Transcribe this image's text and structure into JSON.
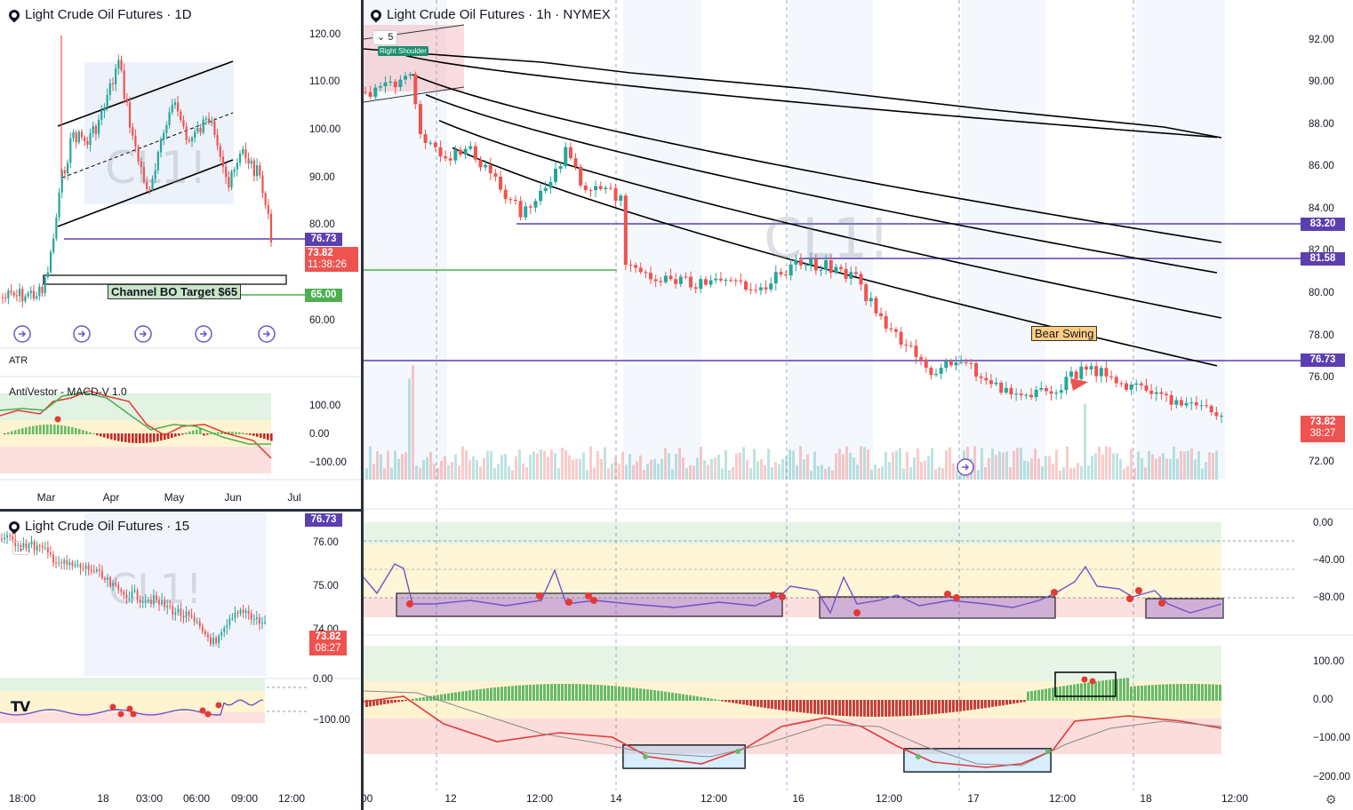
{
  "colors": {
    "up": "#26a69a",
    "down": "#ef5350",
    "line": "#000000",
    "level": "#5b3fb0",
    "green_level": "#4caf50",
    "macd": "#6c55c7",
    "signal": "#e53935"
  },
  "top_left": {
    "title": "Light Crude Oil Futures · 1D",
    "watermark": "CL1!",
    "y_ticks": [
      "120.00",
      "110.00",
      "100.00",
      "90.00",
      "80.00",
      "60.00"
    ],
    "x_ticks": [
      "Mar",
      "Apr",
      "May",
      "Jun",
      "Jul"
    ],
    "level_76": "76.73",
    "price": "73.82",
    "countdown": "11:38:26",
    "target_label": "Channel BO Target $65",
    "target_price": "65.00",
    "atr_label": "ATR",
    "macd_label": "AntiVestor - MACD-V 1.0",
    "macd_ticks": [
      "100.00",
      "0.00",
      "−100.00"
    ]
  },
  "bottom_left": {
    "title": "Light Crude Oil Futures · 15",
    "watermark": "CL1!",
    "level": "76.73",
    "y_ticks": [
      "76.00",
      "75.00",
      "74.00"
    ],
    "price": "73.82",
    "countdown": "08:27",
    "ind_ticks": [
      "0.00",
      "−100.00"
    ],
    "x_ticks": [
      "18:00",
      "18",
      "03:00",
      "06:00",
      "09:00",
      "12:00"
    ],
    "logo": "TV"
  },
  "main": {
    "title": "Light Crude Oil Futures · 1h · NYMEX",
    "watermark": "CL1!",
    "y_ticks": [
      "92.00",
      "90.00",
      "88.00",
      "86.00",
      "84.00",
      "82.00",
      "80.00",
      "78.00",
      "76.00",
      "72.00"
    ],
    "level_83": "83.20",
    "level_81": "81.58",
    "level_76": "76.73",
    "price": "73.82",
    "countdown": "38:27",
    "bear_swing": "Bear Swing",
    "right_shoulder": "Right Shoulder",
    "collapse_count": "5",
    "rsi_ticks": [
      "0.00",
      "−40.00",
      "−80.00"
    ],
    "macd_ticks": [
      "100.00",
      "0.00",
      "−100.00",
      "−200.00"
    ],
    "x_ticks": [
      "12",
      "12:00",
      "14",
      "12:00",
      "16",
      "12:00",
      "17",
      "12:00",
      "18",
      "12:00"
    ]
  }
}
